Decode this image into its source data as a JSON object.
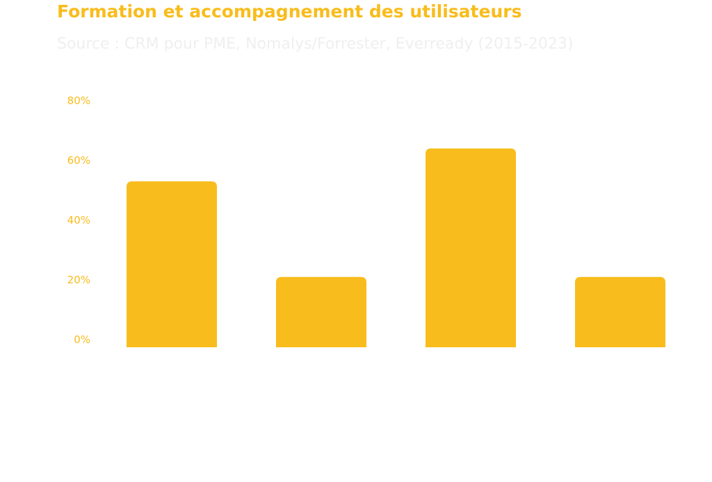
{
  "chart_data": {
    "type": "bar",
    "title": "Formation et accompagnement des utilisateurs",
    "subtitle": "Source : CRM pour PME, Nomalys/Forrester, Everready (2015-2023)",
    "categories": [
      "",
      "",
      "",
      ""
    ],
    "values": [
      53,
      21,
      64,
      21
    ],
    "ylim": [
      0,
      80
    ],
    "y_ticks": [
      0,
      20,
      40,
      60,
      80
    ],
    "y_tick_labels": [
      "0%",
      "20%",
      "40%",
      "60%",
      "80%"
    ],
    "xlabel": "",
    "ylabel": "",
    "grid": false,
    "legend": "none",
    "bar_color": "#f8bc1c",
    "text_color": "#f8bc1c",
    "subtitle_color": "#efefef"
  }
}
